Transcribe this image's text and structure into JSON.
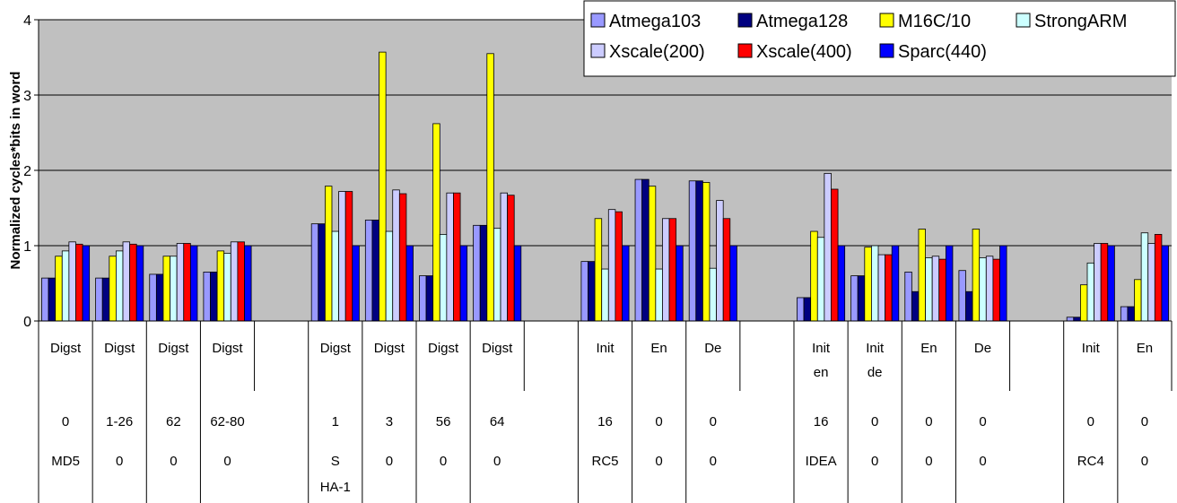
{
  "chart_data": {
    "type": "bar",
    "title": "",
    "xlabel": "",
    "ylabel": "Normalized cycles*bits in word",
    "ylim": [
      0,
      4
    ],
    "yticks": [
      0,
      1,
      2,
      3,
      4
    ],
    "grid": true,
    "legend_position": "top-right",
    "category_groups": [
      {
        "row1": "Digst",
        "row1b": "",
        "row2": "0",
        "row3": "MD5",
        "row3b": ""
      },
      {
        "row1": "Digst",
        "row1b": "",
        "row2": "1-26",
        "row3": "0",
        "row3b": ""
      },
      {
        "row1": "Digst",
        "row1b": "",
        "row2": "62",
        "row3": "0",
        "row3b": ""
      },
      {
        "row1": "Digst",
        "row1b": "",
        "row2": "62-80",
        "row3": "0",
        "row3b": ""
      },
      {
        "row1": "Digst",
        "row1b": "",
        "row2": "1",
        "row3": "S",
        "row3b": "HA-1"
      },
      {
        "row1": "Digst",
        "row1b": "",
        "row2": "3",
        "row3": "0",
        "row3b": ""
      },
      {
        "row1": "Digst",
        "row1b": "",
        "row2": "56",
        "row3": "0",
        "row3b": ""
      },
      {
        "row1": "Digst",
        "row1b": "",
        "row2": "64",
        "row3": "0",
        "row3b": ""
      },
      {
        "row1": "Init",
        "row1b": "",
        "row2": "16",
        "row3": "RC5",
        "row3b": ""
      },
      {
        "row1": "En",
        "row1b": "",
        "row2": "0",
        "row3": "0",
        "row3b": ""
      },
      {
        "row1": "De",
        "row1b": "",
        "row2": "0",
        "row3": "0",
        "row3b": ""
      },
      {
        "row1": "Init",
        "row1b": "en",
        "row2": "16",
        "row3": "IDEA",
        "row3b": ""
      },
      {
        "row1": "Init",
        "row1b": "de",
        "row2": "0",
        "row3": "0",
        "row3b": ""
      },
      {
        "row1": "En",
        "row1b": "",
        "row2": "0",
        "row3": "0",
        "row3b": ""
      },
      {
        "row1": "De",
        "row1b": "",
        "row2": "0",
        "row3": "0",
        "row3b": ""
      },
      {
        "row1": "Init",
        "row1b": "",
        "row2": "0",
        "row3": "RC4",
        "row3b": ""
      },
      {
        "row1": "En",
        "row1b": "",
        "row2": "0",
        "row3": "0",
        "row3b": ""
      }
    ],
    "series": [
      {
        "name": "Atmega103",
        "color": "#9999ff",
        "values": [
          0.57,
          0.57,
          0.62,
          0.65,
          1.29,
          1.34,
          0.6,
          1.27,
          0.79,
          1.88,
          1.86,
          0.31,
          0.6,
          0.65,
          0.67,
          0.05,
          0.19
        ]
      },
      {
        "name": "Atmega128",
        "color": "#000080",
        "values": [
          0.57,
          0.57,
          0.62,
          0.65,
          1.29,
          1.34,
          0.6,
          1.27,
          0.79,
          1.88,
          1.86,
          0.31,
          0.6,
          0.39,
          0.39,
          0.05,
          0.19
        ]
      },
      {
        "name": "M16C/10",
        "color": "#ffff00",
        "values": [
          0.86,
          0.86,
          0.86,
          0.93,
          1.79,
          3.57,
          2.62,
          3.55,
          1.36,
          1.79,
          1.84,
          1.19,
          0.98,
          1.22,
          1.22,
          0.48,
          0.55
        ]
      },
      {
        "name": "StrongARM",
        "color": "#ccffff",
        "values": [
          0.93,
          0.93,
          0.86,
          0.9,
          1.19,
          1.19,
          1.15,
          1.23,
          0.69,
          0.69,
          0.7,
          1.11,
          1.0,
          0.84,
          0.84,
          0.77,
          1.17
        ]
      },
      {
        "name": "Xscale(200)",
        "color": "#ccccff",
        "values": [
          1.05,
          1.05,
          1.03,
          1.05,
          1.72,
          1.74,
          1.7,
          1.7,
          1.48,
          1.36,
          1.6,
          1.96,
          0.88,
          0.86,
          0.86,
          1.03,
          1.03
        ]
      },
      {
        "name": "Xscale(400)",
        "color": "#ff0000",
        "values": [
          1.02,
          1.02,
          1.03,
          1.05,
          1.72,
          1.69,
          1.7,
          1.67,
          1.45,
          1.36,
          1.36,
          1.75,
          0.88,
          0.82,
          0.82,
          1.03,
          1.15
        ]
      },
      {
        "name": "Sparc(440)",
        "color": "#0000ff",
        "values": [
          1.0,
          1.0,
          1.0,
          1.0,
          1.0,
          1.0,
          1.0,
          1.0,
          1.0,
          1.0,
          1.0,
          1.0,
          1.0,
          1.0,
          1.0,
          1.0,
          1.0
        ]
      }
    ]
  }
}
